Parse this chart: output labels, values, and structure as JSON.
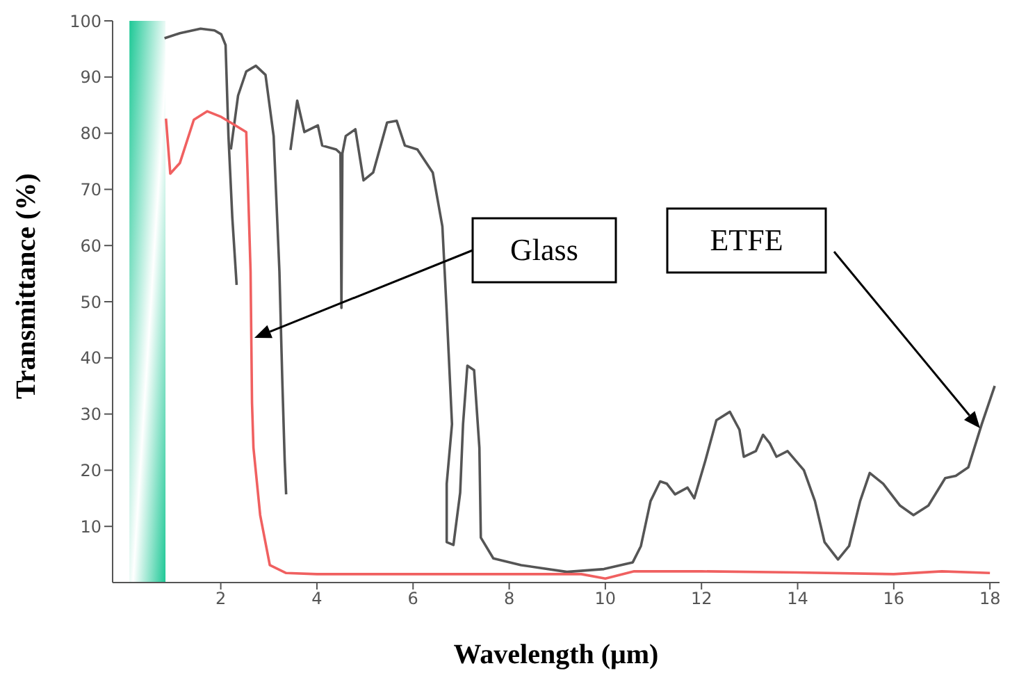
{
  "chart_data": {
    "type": "line",
    "xlabel": "Wavelength (μm)",
    "ylabel": "Transmittance (%)",
    "xlim": [
      -0.25,
      18.2
    ],
    "ylim": [
      0,
      100
    ],
    "xticks": [
      2,
      4,
      6,
      8,
      10,
      12,
      14,
      16,
      18
    ],
    "yticks": [
      10,
      20,
      30,
      40,
      50,
      60,
      70,
      80,
      90,
      100
    ],
    "marker": "none",
    "line_style": "solid",
    "bands": [
      {
        "axis": "x",
        "from": 0.1,
        "to": 0.85,
        "color": "#1ec896"
      }
    ],
    "series": [
      {
        "color": "#555555",
        "x": [
          0.83,
          1.15,
          1.58,
          1.87,
          2.01,
          2.1,
          2.16,
          2.24,
          2.33
        ],
        "values": [
          96.9,
          97.8,
          98.6,
          98.3,
          97.6,
          95.7,
          79.5,
          65,
          53
        ]
      },
      {
        "color": "#555555",
        "x": [
          2.21,
          2.36,
          2.53,
          2.73,
          2.93,
          3.1,
          3.22,
          3.28,
          3.33,
          3.36
        ],
        "values": [
          77.1,
          86.7,
          91,
          92,
          90.4,
          79.5,
          55.4,
          36,
          21.7,
          15.7
        ]
      },
      {
        "color": "#555555",
        "x": [
          3.45,
          3.59,
          3.74,
          4.02,
          4.11,
          4.4,
          4.49,
          4.51,
          4.53,
          4.6,
          4.8,
          4.97,
          5.17,
          5.46,
          5.66,
          5.83,
          6.09,
          6.41,
          6.61,
          6.7,
          6.81,
          6.7,
          6.7,
          6.84,
          6.98,
          7.04,
          7.13,
          7.27,
          7.38,
          7.41,
          7.67,
          8.25,
          9.2,
          9.97,
          10.57,
          10.74,
          10.94,
          11.14,
          11.28,
          11.45,
          11.71,
          11.85,
          12.08,
          12.31,
          12.59,
          12.79,
          12.88,
          13.13,
          13.28,
          13.42,
          13.56,
          13.79,
          14.13,
          14.36,
          14.56,
          14.84,
          15.07,
          15.3,
          15.5,
          15.78,
          16.13,
          16.41,
          16.72,
          17.07,
          17.29,
          17.55,
          17.83,
          18.1
        ],
        "values": [
          77,
          85.8,
          80.2,
          81.4,
          77.8,
          77.1,
          76.4,
          48.9,
          76.4,
          79.5,
          80.7,
          71.6,
          73,
          81.9,
          82.2,
          77.8,
          77.1,
          73,
          63.4,
          48.2,
          28.2,
          17.6,
          7.2,
          6.7,
          16,
          28.2,
          38.6,
          37.8,
          24,
          8,
          4.3,
          3.1,
          1.9,
          2.4,
          3.6,
          6.5,
          14.5,
          18,
          17.6,
          15.7,
          16.9,
          15,
          21.7,
          28.9,
          30.4,
          27.2,
          22.4,
          23.4,
          26.3,
          24.8,
          22.4,
          23.4,
          20,
          14.5,
          7.2,
          4.1,
          6.5,
          14.5,
          19.5,
          17.6,
          13.7,
          12,
          13.7,
          18.6,
          19,
          20.5,
          28.2,
          35
        ]
      },
      {
        "color": "#f06060",
        "x": [
          0.86,
          0.95,
          1.15,
          1.44,
          1.72,
          2.01,
          2.3,
          2.53,
          2.56,
          2.62,
          2.65,
          2.68,
          2.82,
          3.02,
          3.36,
          4,
          6,
          8,
          9.5,
          10,
          10.6,
          12,
          14,
          16,
          17,
          18
        ],
        "values": [
          82.6,
          72.8,
          74.7,
          82.4,
          83.9,
          82.9,
          81.4,
          80.2,
          72.3,
          55.4,
          32,
          24,
          12,
          3.1,
          1.7,
          1.5,
          1.5,
          1.5,
          1.5,
          0.7,
          2,
          2,
          1.8,
          1.5,
          2,
          1.7
        ]
      }
    ],
    "annotations": [
      "Glass",
      "ETFE"
    ]
  }
}
